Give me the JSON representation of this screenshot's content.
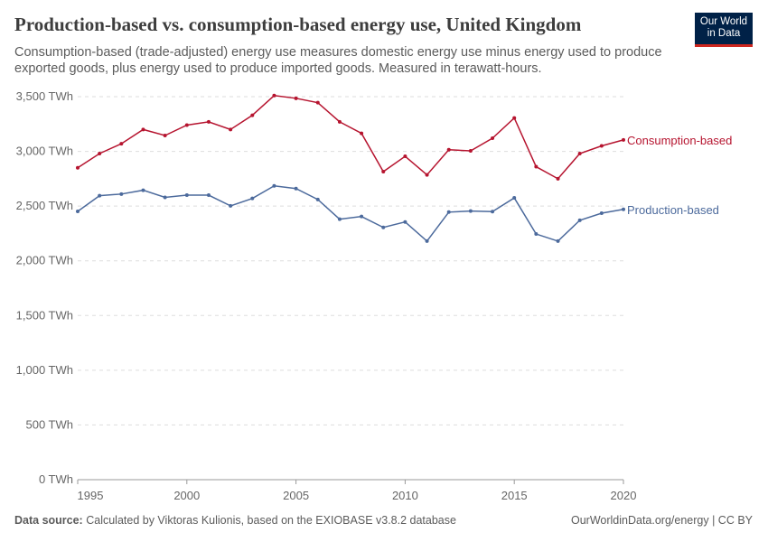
{
  "header": {
    "title": "Production-based vs. consumption-based energy use, United Kingdom",
    "subtitle": "Consumption-based (trade-adjusted) energy use measures domestic energy use minus energy used to produce exported goods, plus energy used to produce imported goods. Measured in terawatt-hours.",
    "logo": "Our World in Data"
  },
  "footer": {
    "source_label": "Data source:",
    "source": "Calculated by Viktoras Kulionis, based on the EXIOBASE v3.8.2 database",
    "credit": "OurWorldinData.org/energy | CC BY"
  },
  "chart_data": {
    "type": "line",
    "title": "Production-based vs. consumption-based energy use, United Kingdom",
    "xlim": [
      1995,
      2020
    ],
    "ylim": [
      0,
      3500
    ],
    "grid": true,
    "legend": "inline-right",
    "x_ticks": [
      1995,
      2000,
      2005,
      2010,
      2015,
      2020
    ],
    "y_ticks": [
      0,
      500,
      1000,
      1500,
      2000,
      2500,
      3000,
      3500
    ],
    "y_tick_labels": [
      "0 TWh",
      "500 TWh",
      "1,000 TWh",
      "1,500 TWh",
      "2,000 TWh",
      "2,500 TWh",
      "3,000 TWh",
      "3,500 TWh"
    ],
    "x": [
      1995,
      1996,
      1997,
      1998,
      1999,
      2000,
      2001,
      2002,
      2003,
      2004,
      2005,
      2006,
      2007,
      2008,
      2009,
      2010,
      2011,
      2012,
      2013,
      2014,
      2015,
      2016,
      2017,
      2018,
      2019,
      2020
    ],
    "series": [
      {
        "name": "Consumption-based",
        "color": "#b6142f",
        "values": [
          2850,
          2980,
          3070,
          3200,
          3145,
          3240,
          3270,
          3200,
          3330,
          3510,
          3485,
          3445,
          3270,
          3165,
          2815,
          2955,
          2785,
          3015,
          3005,
          3120,
          3305,
          2860,
          2750,
          2980,
          3050,
          3105
        ]
      },
      {
        "name": "Production-based",
        "color": "#4c6a9c",
        "values": [
          2452,
          2595,
          2610,
          2645,
          2580,
          2600,
          2600,
          2502,
          2570,
          2685,
          2660,
          2560,
          2380,
          2405,
          2305,
          2355,
          2180,
          2445,
          2455,
          2450,
          2575,
          2245,
          2180,
          2370,
          2435,
          2470
        ]
      }
    ]
  }
}
